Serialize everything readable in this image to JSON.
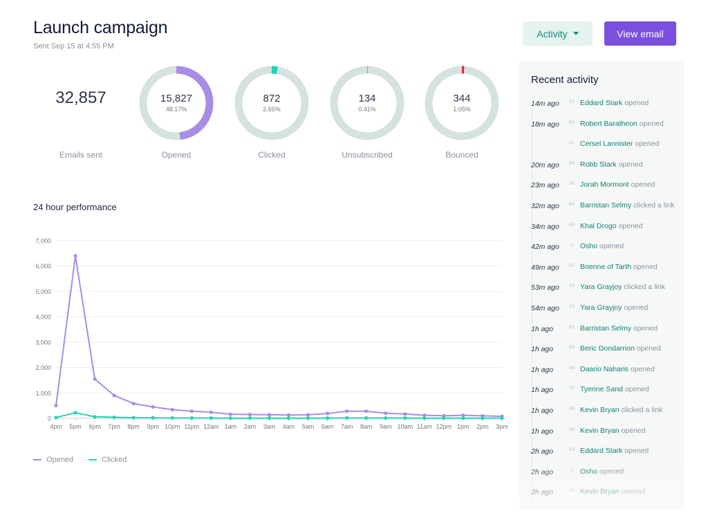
{
  "header": {
    "title": "Launch campaign",
    "subtitle": "Sent Sep 15 at 4:55 PM",
    "activity_label": "Activity",
    "view_email_label": "View email"
  },
  "summary": {
    "sent_value": "32,857",
    "sent_label": "Emails sent"
  },
  "stats": [
    {
      "value": "15,827",
      "percent": "48.17%",
      "label": "Opened",
      "fraction": 0.4817,
      "color": "#a98ce6"
    },
    {
      "value": "872",
      "percent": "2.65%",
      "label": "Clicked",
      "fraction": 0.0265,
      "color": "#1fd6b4"
    },
    {
      "value": "134",
      "percent": "0.41%",
      "label": "Unsubscribed",
      "fraction": 0.0041,
      "color": "#f08a4b"
    },
    {
      "value": "344",
      "percent": "1.05%",
      "label": "Bounced",
      "fraction": 0.0105,
      "color": "#e0242e"
    }
  ],
  "performance": {
    "title": "24 hour performance"
  },
  "chart_data": {
    "type": "line",
    "title": "24 hour performance",
    "x": [
      "4pm",
      "5pm",
      "6pm",
      "7pm",
      "8pm",
      "9pm",
      "10pm",
      "11pm",
      "12am",
      "1am",
      "2am",
      "3am",
      "4am",
      "5am",
      "6am",
      "7am",
      "8am",
      "9am",
      "10am",
      "11am",
      "12pm",
      "1pm",
      "2pm",
      "3pm"
    ],
    "ylim": [
      0,
      7000
    ],
    "y_ticks": [
      "0",
      "1,000",
      "2,000",
      "3,000",
      "4,000",
      "5,000",
      "6,000",
      "7,000"
    ],
    "grid": true,
    "legend": "bottom-left",
    "series": [
      {
        "name": "Opened",
        "color": "#a98ce6",
        "values": [
          500,
          6400,
          1550,
          900,
          580,
          450,
          340,
          280,
          240,
          160,
          150,
          140,
          130,
          140,
          190,
          280,
          280,
          200,
          170,
          120,
          100,
          120,
          100,
          80
        ]
      },
      {
        "name": "Clicked",
        "color": "#1fd6b4",
        "values": [
          30,
          220,
          60,
          40,
          25,
          20,
          15,
          12,
          10,
          8,
          8,
          8,
          7,
          8,
          10,
          14,
          14,
          12,
          10,
          8,
          8,
          8,
          7,
          6
        ]
      }
    ]
  },
  "activity": {
    "title": "Recent activity",
    "items": [
      {
        "time": "14m ago",
        "initials": "ES",
        "name": "Eddard Stark",
        "action": "opened"
      },
      {
        "time": "18m ago",
        "initials": "RS",
        "name": "Robert Baratheon",
        "action": "opened"
      },
      {
        "time": "",
        "initials": "CL",
        "name": "Cersel Lannister",
        "action": "opened"
      },
      {
        "time": "20m ago",
        "initials": "RS",
        "name": "Robb Stark",
        "action": "opened"
      },
      {
        "time": "23m ago",
        "initials": "JM",
        "name": "Jorah Mormont",
        "action": "opened"
      },
      {
        "time": "32m ago",
        "initials": "BS",
        "name": "Barristan Selmy",
        "action": "clicked a link"
      },
      {
        "time": "34m ago",
        "initials": "KD",
        "name": "Khal Drogo",
        "action": "opened"
      },
      {
        "time": "42m ago",
        "initials": "O",
        "name": "Osho",
        "action": "opened"
      },
      {
        "time": "49m ago",
        "initials": "BT",
        "name": "Brienne of Tarth",
        "action": "opened"
      },
      {
        "time": "53m ago",
        "initials": "YG",
        "name": "Yara Grayjoy",
        "action": "clicked a link"
      },
      {
        "time": "54m ago",
        "initials": "YG",
        "name": "Yara Grayjoy",
        "action": "opened"
      },
      {
        "time": "1h ago",
        "initials": "BS",
        "name": "Barristan Selmy",
        "action": "opened"
      },
      {
        "time": "1h ago",
        "initials": "BD",
        "name": "Beric Dondarrion",
        "action": "opened"
      },
      {
        "time": "1h ago",
        "initials": "DN",
        "name": "Daario Naharis",
        "action": "opened"
      },
      {
        "time": "1h ago",
        "initials": "TS",
        "name": "Tyenne Sand",
        "action": "opened"
      },
      {
        "time": "1h ago",
        "initials": "KB",
        "name": "Kevin Bryan",
        "action": "clicked a link"
      },
      {
        "time": "1h ago",
        "initials": "KB",
        "name": "Kevin Bryan",
        "action": "opened"
      },
      {
        "time": "2h ago",
        "initials": "ES",
        "name": "Eddard Stark",
        "action": "opened"
      },
      {
        "time": "2h ago",
        "initials": "O",
        "name": "Osho",
        "action": "opened"
      },
      {
        "time": "2h ago",
        "initials": "KB",
        "name": "Kevin Bryan",
        "action": "opened"
      }
    ]
  },
  "colors": {
    "accent": "#7b4fe0",
    "teal": "#0f8a7e",
    "ring_track": "#d5e2df"
  }
}
